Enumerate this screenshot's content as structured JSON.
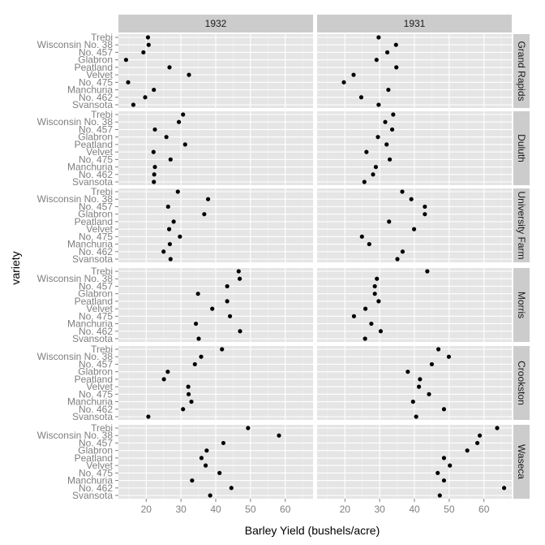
{
  "chart_data": {
    "type": "scatter",
    "xlabel": "Barley Yield (bushels/acre)",
    "ylabel": "variety",
    "xlim": [
      12,
      68
    ],
    "xticks": [
      20,
      30,
      40,
      50,
      60
    ],
    "grid": true,
    "columns": [
      "1932",
      "1931"
    ],
    "rows": [
      "Grand Rapids",
      "Duluth",
      "University Farm",
      "Morris",
      "Crookston",
      "Waseca"
    ],
    "varieties": [
      "Trebi",
      "Wisconsin No. 38",
      "No. 457",
      "Glabron",
      "Peatland",
      "Velvet",
      "No. 475",
      "Manchuria",
      "No. 462",
      "Svansota"
    ],
    "series": [
      {
        "site": "Grand Rapids",
        "year": "1932",
        "values": [
          20.5,
          20.7,
          19.2,
          14.2,
          26.7,
          32.3,
          14.8,
          22.2,
          19.7,
          16.3
        ]
      },
      {
        "site": "Grand Rapids",
        "year": "1931",
        "values": [
          29.7,
          34.7,
          32.2,
          29.1,
          34.8,
          22.5,
          19.7,
          32.5,
          24.7,
          29.7
        ]
      },
      {
        "site": "Duluth",
        "year": "1932",
        "values": [
          30.6,
          29.4,
          22.5,
          25.8,
          31.2,
          22.1,
          27.0,
          22.5,
          22.3,
          22.2
        ]
      },
      {
        "site": "Duluth",
        "year": "1931",
        "values": [
          33.9,
          31.6,
          33.6,
          29.5,
          32.0,
          26.2,
          32.9,
          28.9,
          28.1,
          25.6
        ]
      },
      {
        "site": "University Farm",
        "year": "1932",
        "values": [
          29.1,
          37.8,
          26.3,
          36.7,
          27.9,
          26.6,
          29.7,
          26.8,
          25.0,
          27.0
        ]
      },
      {
        "site": "University Farm",
        "year": "1931",
        "values": [
          36.5,
          39.1,
          43.0,
          43.0,
          32.7,
          39.9,
          24.9,
          27.0,
          36.6,
          35.1
        ]
      },
      {
        "site": "Morris",
        "year": "1932",
        "values": [
          46.6,
          46.9,
          43.3,
          34.9,
          43.3,
          39.0,
          44.1,
          34.3,
          47.0,
          35.1
        ]
      },
      {
        "site": "Morris",
        "year": "1931",
        "values": [
          43.7,
          29.2,
          28.6,
          28.6,
          29.7,
          25.9,
          22.6,
          27.6,
          30.3,
          25.8
        ]
      },
      {
        "site": "Crookston",
        "year": "1932",
        "values": [
          41.8,
          35.8,
          34.0,
          26.2,
          25.1,
          32.1,
          32.2,
          33.0,
          30.6,
          20.6
        ]
      },
      {
        "site": "Crookston",
        "year": "1931",
        "values": [
          46.9,
          49.9,
          45.0,
          38.1,
          41.6,
          41.3,
          44.2,
          39.6,
          48.5,
          40.5
        ]
      },
      {
        "site": "Waseca",
        "year": "1932",
        "values": [
          49.3,
          58.2,
          42.2,
          37.4,
          35.9,
          37.1,
          41.1,
          33.2,
          44.5,
          38.4
        ]
      },
      {
        "site": "Waseca",
        "year": "1931",
        "values": [
          63.8,
          58.8,
          58.1,
          55.2,
          48.5,
          50.2,
          46.7,
          48.5,
          65.8,
          47.3
        ]
      }
    ]
  },
  "colors": {
    "panel_background": "#e5e5e5",
    "strip_background": "#cccccc",
    "grid_major": "#ffffff",
    "grid_minor": "#f2f2f2",
    "point": "#000000",
    "tick_label": "#7f7f7f"
  }
}
